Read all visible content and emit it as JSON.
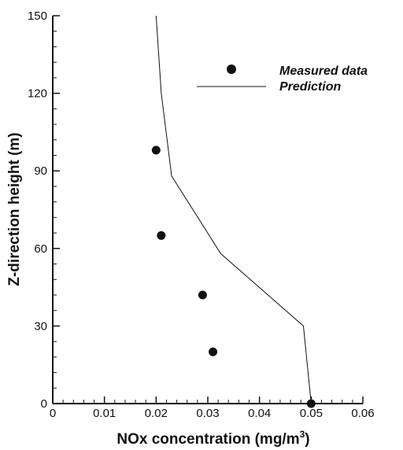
{
  "chart_data": {
    "type": "scatter",
    "xlabel": "NOx concentration (mg/m",
    "xlabel_superscript": "3",
    "xlabel_suffix": ")",
    "ylabel": "Z-direction height (m)",
    "xlim": [
      0,
      0.06
    ],
    "ylim": [
      0,
      150
    ],
    "x_ticks": [
      0,
      0.01,
      0.02,
      0.03,
      0.04,
      0.05,
      0.06
    ],
    "x_tick_labels": [
      "0",
      "0.01",
      "0.02",
      "0.03",
      "0.04",
      "0.05",
      "0.06"
    ],
    "y_ticks": [
      0,
      30,
      60,
      90,
      120,
      150
    ],
    "y_tick_labels": [
      "0",
      "30",
      "60",
      "90",
      "120",
      "150"
    ],
    "grid": false,
    "legend_position": "top-right",
    "series": [
      {
        "name": "Measured data",
        "kind": "scatter",
        "color": "#111111",
        "points": [
          {
            "x": 0.02,
            "y": 98
          },
          {
            "x": 0.021,
            "y": 65
          },
          {
            "x": 0.029,
            "y": 42
          },
          {
            "x": 0.031,
            "y": 20
          },
          {
            "x": 0.05,
            "y": 0
          }
        ]
      },
      {
        "name": "Prediction",
        "kind": "line",
        "color": "#111111",
        "points": [
          {
            "x": 0.05,
            "y": 0
          },
          {
            "x": 0.0485,
            "y": 30
          },
          {
            "x": 0.0325,
            "y": 58
          },
          {
            "x": 0.023,
            "y": 88
          },
          {
            "x": 0.021,
            "y": 120
          },
          {
            "x": 0.02,
            "y": 150
          }
        ]
      }
    ]
  }
}
